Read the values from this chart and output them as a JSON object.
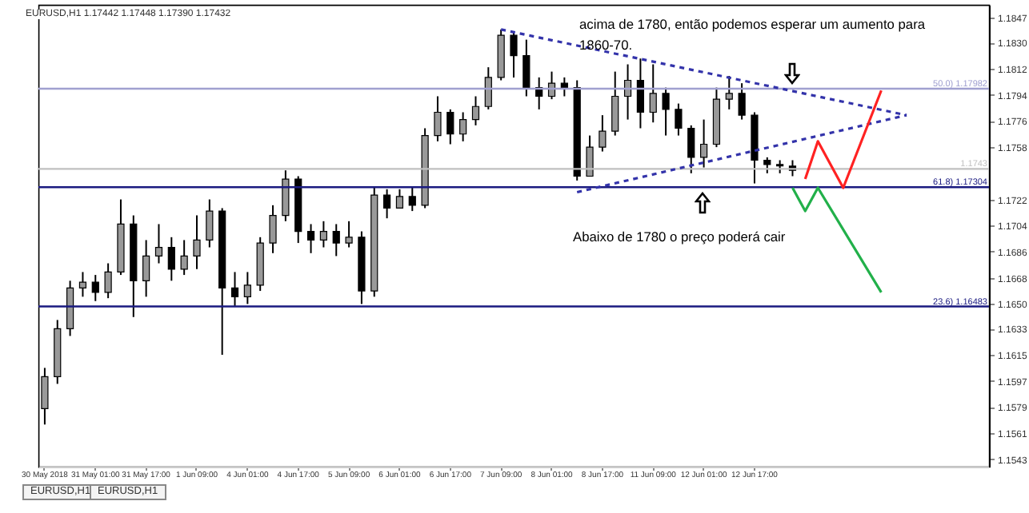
{
  "chart_data": {
    "type": "candlestick",
    "subtitle": "EURUSD,H1  1.17442 1.17448 1.17390 1.17432",
    "annotations": [
      "acima de 1780, então podemos esperar um aumento para 1860-70.",
      "Abaixo de 1780 o preço poderá cair",
      "EURUSD,H1",
      "EURUSD,H1"
    ],
    "categories": [
      "30 May 2018",
      null,
      null,
      null,
      "31 May 01:00",
      null,
      null,
      null,
      "31 May 17:00",
      null,
      null,
      null,
      "1 Jun 09:00",
      null,
      null,
      null,
      "4 Jun 01:00",
      null,
      null,
      null,
      "4 Jun 17:00",
      null,
      null,
      null,
      "5 Jun 09:00",
      null,
      null,
      null,
      "6 Jun 01:00",
      null,
      null,
      null,
      "6 Jun 17:00",
      null,
      null,
      null,
      "7 Jun 09:00",
      null,
      null,
      null,
      "8 Jun 01:00",
      null,
      null,
      null,
      "8 Jun 17:00",
      null,
      null,
      null,
      "11 Jun 09:00",
      null,
      null,
      null,
      "12 Jun 01:00",
      null,
      null,
      null,
      "12 Jun 17:00",
      null,
      null,
      null,
      null,
      null,
      null,
      null,
      null,
      null,
      null,
      null,
      null,
      null,
      null,
      null,
      null,
      null,
      null
    ],
    "ohlc": [
      [
        1.1578,
        1.1606,
        1.1567,
        1.16
      ],
      [
        1.16,
        1.1639,
        1.1595,
        1.1633
      ],
      [
        1.1633,
        1.1666,
        1.1628,
        1.1661
      ],
      [
        1.1661,
        1.1672,
        1.1655,
        1.1665
      ],
      [
        1.1665,
        1.167,
        1.1652,
        1.1658
      ],
      [
        1.1658,
        1.1678,
        1.1654,
        1.1672
      ],
      [
        1.1672,
        1.1722,
        1.167,
        1.1705
      ],
      [
        1.1705,
        1.1711,
        1.1641,
        1.1666
      ],
      [
        1.1666,
        1.1694,
        1.1655,
        1.1683
      ],
      [
        1.1683,
        1.1705,
        1.1678,
        1.1689
      ],
      [
        1.1689,
        1.1696,
        1.1666,
        1.1674
      ],
      [
        1.1674,
        1.1694,
        1.167,
        1.1683
      ],
      [
        1.1683,
        1.1711,
        1.1674,
        1.1694
      ],
      [
        1.1694,
        1.1722,
        1.1689,
        1.1714
      ],
      [
        1.1714,
        1.1716,
        1.1615,
        1.1661
      ],
      [
        1.1661,
        1.1672,
        1.1648,
        1.1655
      ],
      [
        1.1655,
        1.1672,
        1.165,
        1.1663
      ],
      [
        1.1663,
        1.1696,
        1.1659,
        1.1692
      ],
      [
        1.1692,
        1.1718,
        1.1685,
        1.1711
      ],
      [
        1.1711,
        1.1742,
        1.1707,
        1.1736
      ],
      [
        1.1736,
        1.1738,
        1.1692,
        1.17
      ],
      [
        1.17,
        1.1705,
        1.1685,
        1.1694
      ],
      [
        1.1694,
        1.1707,
        1.1689,
        1.17
      ],
      [
        1.17,
        1.1705,
        1.1683,
        1.1692
      ],
      [
        1.1692,
        1.1707,
        1.1689,
        1.1696
      ],
      [
        1.1696,
        1.17,
        1.165,
        1.1659
      ],
      [
        1.1659,
        1.173,
        1.1655,
        1.1725
      ],
      [
        1.1725,
        1.1729,
        1.1709,
        1.1716
      ],
      [
        1.1716,
        1.1729,
        1.1716,
        1.1724
      ],
      [
        1.1724,
        1.173,
        1.1714,
        1.1718
      ],
      [
        1.1718,
        1.1771,
        1.1716,
        1.1766
      ],
      [
        1.1766,
        1.1793,
        1.1762,
        1.1782
      ],
      [
        1.1782,
        1.1784,
        1.176,
        1.1767
      ],
      [
        1.1767,
        1.1782,
        1.1762,
        1.1777
      ],
      [
        1.1777,
        1.1793,
        1.1773,
        1.1786
      ],
      [
        1.1786,
        1.1813,
        1.1784,
        1.1806
      ],
      [
        1.1806,
        1.1839,
        1.1804,
        1.1835
      ],
      [
        1.1835,
        1.1837,
        1.1806,
        1.1821
      ],
      [
        1.1821,
        1.1832,
        1.1793,
        1.1799
      ],
      [
        1.1799,
        1.1806,
        1.1784,
        1.1793
      ],
      [
        1.1793,
        1.181,
        1.1791,
        1.1802
      ],
      [
        1.1802,
        1.1806,
        1.1793,
        1.1799
      ],
      [
        1.1799,
        1.1804,
        1.1735,
        1.1738
      ],
      [
        1.1738,
        1.1766,
        1.1738,
        1.1758
      ],
      [
        1.1758,
        1.178,
        1.1755,
        1.1769
      ],
      [
        1.1769,
        1.181,
        1.1766,
        1.1793
      ],
      [
        1.1793,
        1.1815,
        1.1777,
        1.1804
      ],
      [
        1.1804,
        1.1819,
        1.1771,
        1.1782
      ],
      [
        1.1782,
        1.1815,
        1.1775,
        1.1795
      ],
      [
        1.1795,
        1.1799,
        1.1766,
        1.1784
      ],
      [
        1.1784,
        1.1788,
        1.1766,
        1.1771
      ],
      [
        1.1771,
        1.1773,
        1.174,
        1.1751
      ],
      [
        1.1751,
        1.1777,
        1.1744,
        1.176
      ],
      [
        1.176,
        1.1799,
        1.1758,
        1.1791
      ],
      [
        1.1791,
        1.1807,
        1.1784,
        1.1795
      ],
      [
        1.1795,
        1.1802,
        1.1777,
        1.178
      ],
      [
        1.178,
        1.1782,
        1.1733,
        1.1749
      ],
      [
        1.1749,
        1.1751,
        1.174,
        1.1746
      ],
      [
        1.1746,
        1.1749,
        1.174,
        1.1745
      ],
      [
        1.1745,
        1.1749,
        1.1738,
        1.1742
      ],
      null,
      null,
      null,
      null,
      null,
      null,
      null,
      null,
      null,
      null,
      null,
      null,
      null,
      null,
      null
    ],
    "series": [
      {
        "type": "line",
        "color": "#3333aa",
        "line_style": "dashed",
        "values": [
          null,
          null,
          null,
          null,
          null,
          null,
          null,
          null,
          null,
          null,
          null,
          null,
          null,
          null,
          null,
          null,
          null,
          null,
          null,
          null,
          null,
          null,
          null,
          null,
          null,
          null,
          null,
          null,
          null,
          null,
          null,
          null,
          null,
          null,
          null,
          null,
          1.1839,
          null,
          null,
          null,
          null,
          null,
          null,
          null,
          null,
          null,
          null,
          null,
          null,
          null,
          null,
          null,
          null,
          null,
          null,
          null,
          null,
          null,
          null,
          null,
          null,
          null,
          null,
          null,
          null,
          null,
          null,
          null,
          1.178,
          null,
          null,
          null,
          null,
          null,
          null
        ]
      },
      {
        "type": "line",
        "color": "#3333aa",
        "line_style": "dashed",
        "values": [
          null,
          null,
          null,
          null,
          null,
          null,
          null,
          null,
          null,
          null,
          null,
          null,
          null,
          null,
          null,
          null,
          null,
          null,
          null,
          null,
          null,
          null,
          null,
          null,
          null,
          null,
          null,
          null,
          null,
          null,
          null,
          null,
          null,
          null,
          null,
          null,
          null,
          null,
          null,
          null,
          null,
          null,
          1.1727,
          null,
          null,
          null,
          null,
          null,
          null,
          null,
          null,
          null,
          null,
          null,
          null,
          null,
          null,
          null,
          null,
          null,
          null,
          null,
          null,
          null,
          null,
          null,
          null,
          null,
          1.178,
          null,
          null,
          null,
          null,
          null,
          null
        ]
      },
      {
        "type": "line",
        "color": "#ff2222",
        "line_style": "solid",
        "values": [
          null,
          null,
          null,
          null,
          null,
          null,
          null,
          null,
          null,
          null,
          null,
          null,
          null,
          null,
          null,
          null,
          null,
          null,
          null,
          null,
          null,
          null,
          null,
          null,
          null,
          null,
          null,
          null,
          null,
          null,
          null,
          null,
          null,
          null,
          null,
          null,
          null,
          null,
          null,
          null,
          null,
          null,
          null,
          null,
          null,
          null,
          null,
          null,
          null,
          null,
          null,
          null,
          null,
          null,
          null,
          null,
          null,
          null,
          null,
          null,
          1.1736,
          1.1762,
          null,
          1.173,
          null,
          null,
          1.1797,
          null,
          null,
          null,
          null,
          null,
          null,
          null,
          null
        ]
      },
      {
        "type": "line",
        "color": "#22b04a",
        "line_style": "solid",
        "values": [
          null,
          null,
          null,
          null,
          null,
          null,
          null,
          null,
          null,
          null,
          null,
          null,
          null,
          null,
          null,
          null,
          null,
          null,
          null,
          null,
          null,
          null,
          null,
          null,
          null,
          null,
          null,
          null,
          null,
          null,
          null,
          null,
          null,
          null,
          null,
          null,
          null,
          null,
          null,
          null,
          null,
          null,
          null,
          null,
          null,
          null,
          null,
          null,
          null,
          null,
          null,
          null,
          null,
          null,
          null,
          null,
          null,
          null,
          null,
          1.173,
          1.1714,
          1.173,
          null,
          null,
          null,
          null,
          1.1658,
          null,
          null,
          null,
          null,
          null,
          null,
          null,
          null
        ]
      }
    ],
    "ref_lines": [
      {
        "axis": "y",
        "value": 1.17982,
        "label": "50.0) 1.17982",
        "color": "#a0a0d0"
      },
      {
        "axis": "y",
        "value": 1.1743,
        "label": "1.1743",
        "color": "#c0c0c0"
      },
      {
        "axis": "y",
        "value": 1.17304,
        "label": "61.8) 1.17304",
        "color": "#1a1a80"
      },
      {
        "axis": "y",
        "value": 1.16483,
        "label": "23.6) 1.16483",
        "color": "#1a1a80"
      }
    ],
    "ylim": [
      1.1538,
      1.1856
    ],
    "yticks": [
      1.1847,
      {
        "value": 1.183,
        "label": "1.1830"
      },
      1.1812,
      1.1794,
      1.1776,
      1.1758,
      1.1722,
      1.1704,
      1.1686,
      1.1668,
      {
        "value": 1.165,
        "label": "1.1650"
      },
      1.1633,
      1.1615,
      1.1597,
      1.1579,
      1.1561,
      1.1543
    ],
    "grid": false
  }
}
